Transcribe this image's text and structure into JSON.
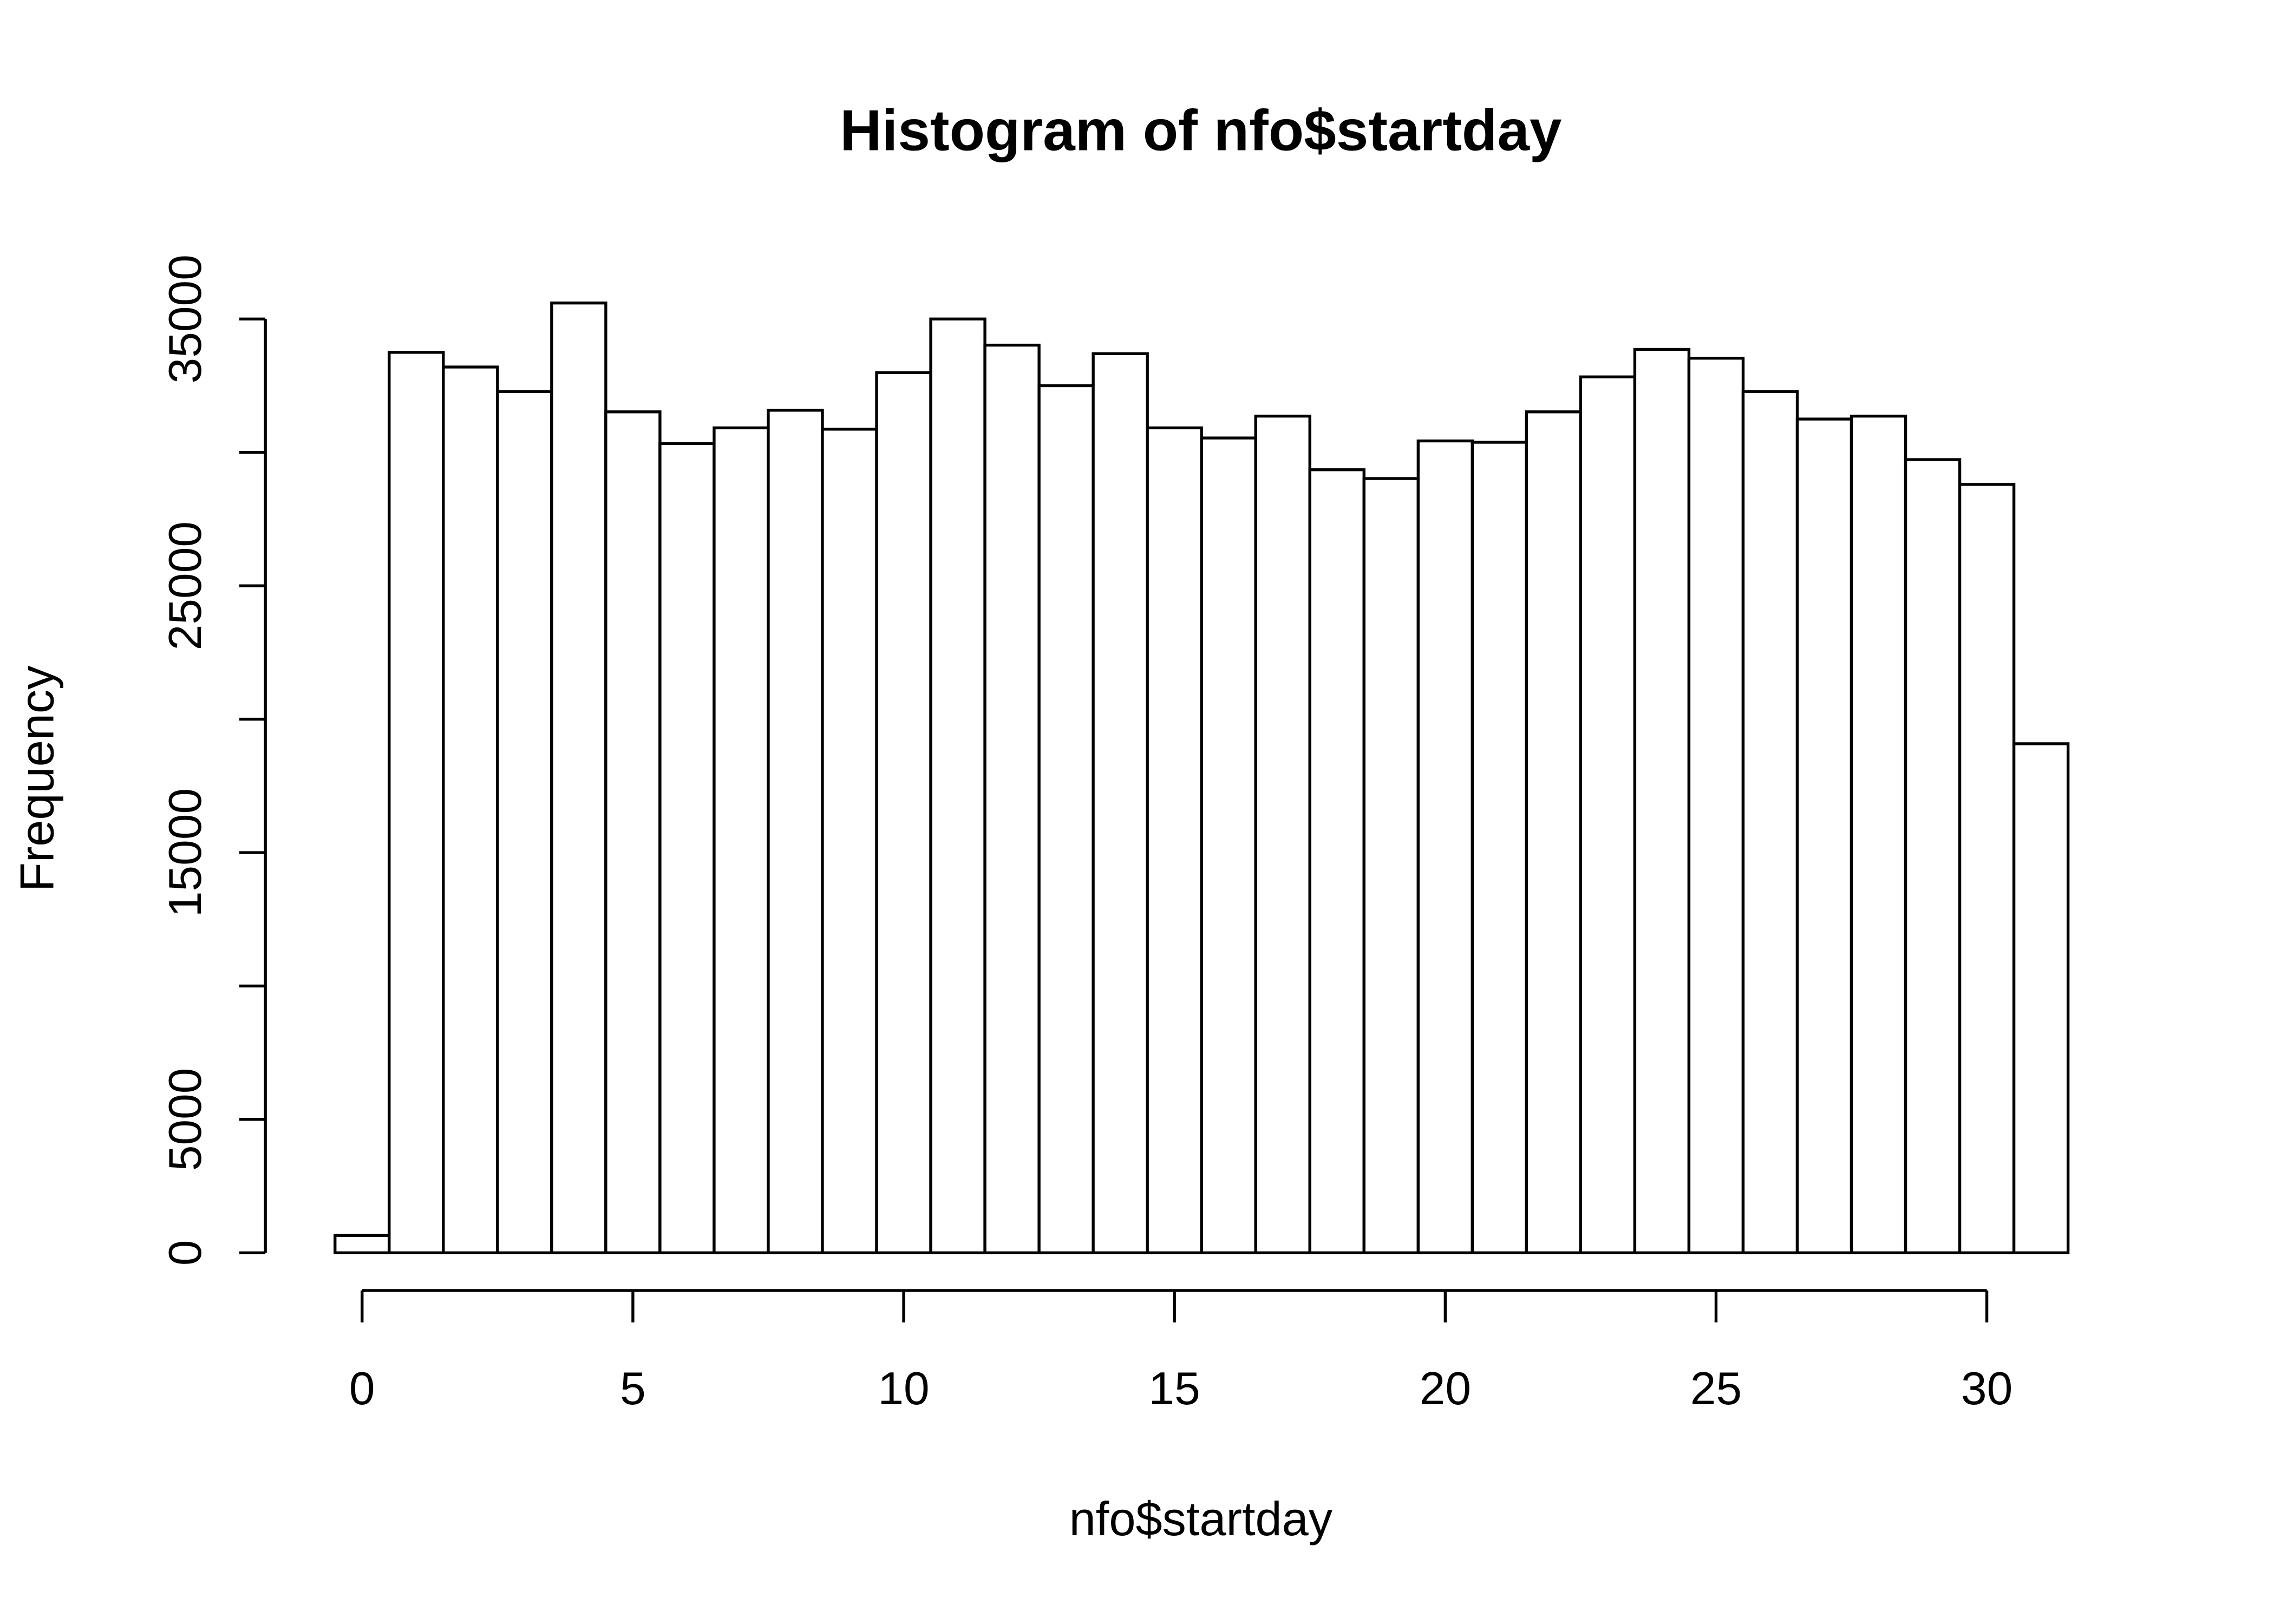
{
  "chart_data": {
    "type": "histogram",
    "title": "Histogram of nfo$startday",
    "x_label": "nfo$startday",
    "y_label": "Frequency",
    "bins": [
      -0.5,
      0.5,
      1.5,
      2.5,
      3.5,
      4.5,
      5.5,
      6.5,
      7.5,
      8.5,
      9.5,
      10.5,
      11.5,
      12.5,
      13.5,
      14.5,
      15.5,
      16.5,
      17.5,
      18.5,
      19.5,
      20.5,
      21.5,
      22.5,
      23.5,
      24.5,
      25.5,
      26.5,
      27.5,
      28.5,
      29.5,
      30.5,
      31.5
    ],
    "values": [
      650,
      33750,
      33200,
      32280,
      35600,
      31520,
      30330,
      30920,
      31580,
      30870,
      32990,
      35000,
      34020,
      32500,
      33700,
      30920,
      30540,
      31360,
      29350,
      29020,
      30430,
      30380,
      31520,
      32830,
      33860,
      33530,
      32280,
      31250,
      31360,
      29730,
      28800,
      19080
    ],
    "color": "#ffffff",
    "xlim": [
      -0.5,
      31.5
    ],
    "xticks": [
      0,
      5,
      10,
      15,
      20,
      25,
      30
    ],
    "ylim": [
      0,
      35000
    ],
    "yticks": [
      0,
      5000,
      {
        "value": 10000,
        "label": null
      },
      15000,
      {
        "value": 20000,
        "label": null
      },
      25000,
      {
        "value": 30000,
        "label": null
      },
      35000
    ]
  }
}
